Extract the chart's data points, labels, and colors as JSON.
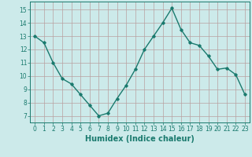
{
  "x": [
    0,
    1,
    2,
    3,
    4,
    5,
    6,
    7,
    8,
    9,
    10,
    11,
    12,
    13,
    14,
    15,
    16,
    17,
    18,
    19,
    20,
    21,
    22,
    23
  ],
  "y": [
    13,
    12.5,
    11,
    9.8,
    9.4,
    8.6,
    7.8,
    7.0,
    7.2,
    8.3,
    9.3,
    10.5,
    12.0,
    13.0,
    14.0,
    15.1,
    13.5,
    12.5,
    12.3,
    11.5,
    10.5,
    10.6,
    10.1,
    8.6
  ],
  "line_color": "#1a7a6e",
  "bg_color": "#cceaea",
  "grid_color": "#b8a0a0",
  "xlabel": "Humidex (Indice chaleur)",
  "xlabel_fontsize": 7,
  "ylabel_ticks": [
    7,
    8,
    9,
    10,
    11,
    12,
    13,
    14,
    15
  ],
  "xlim": [
    -0.5,
    23.5
  ],
  "ylim": [
    6.5,
    15.6
  ],
  "marker": "D",
  "marker_size": 1.8,
  "linewidth": 1.0,
  "tick_fontsize": 5.5
}
